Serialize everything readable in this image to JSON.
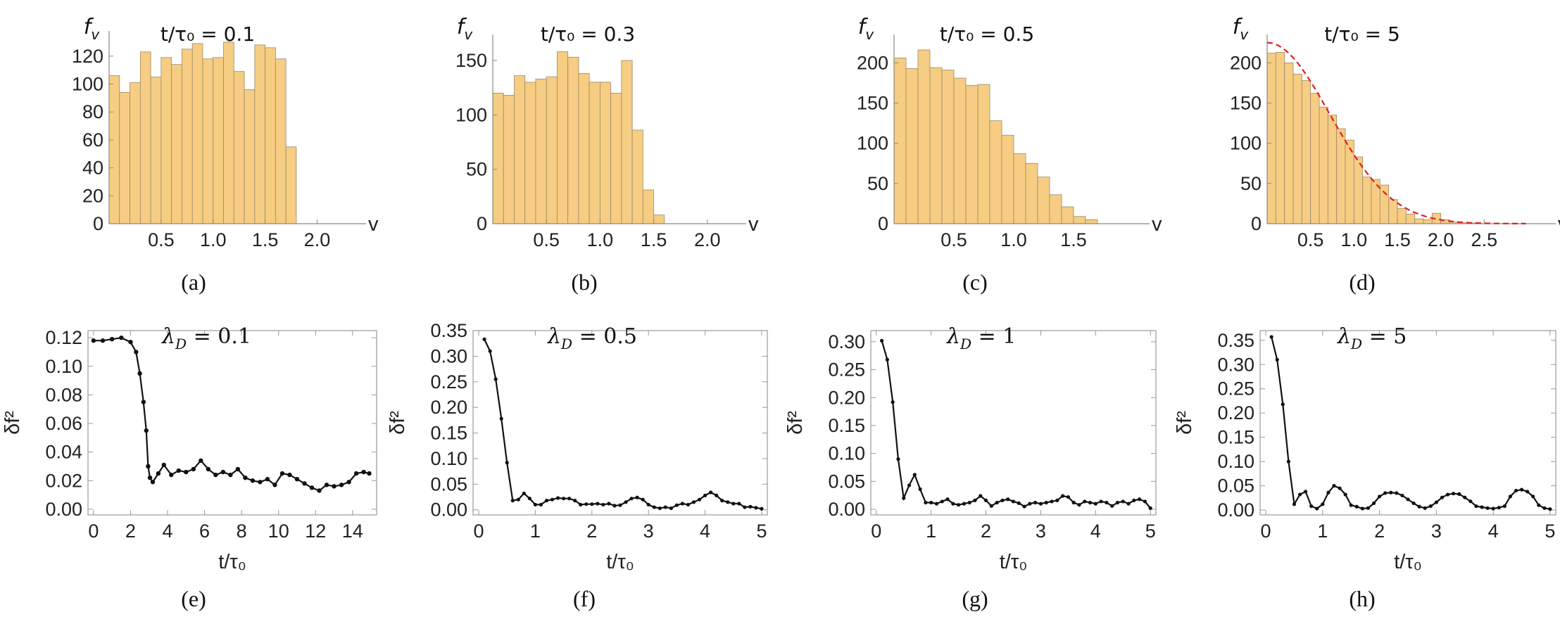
{
  "figure": {
    "chart_data": [
      {
        "type": "bar",
        "panel": "(a)",
        "title": "t/τ₀ = 0.1",
        "ylabel": "f_v",
        "xlabel": "v",
        "bin_start": 0.0,
        "bin_width": 0.1,
        "values": [
          106,
          94,
          101,
          123,
          105,
          119,
          114,
          125,
          129,
          118,
          119,
          130,
          109,
          96,
          128,
          126,
          118,
          55
        ],
        "xlim": [
          0,
          2.2
        ],
        "ylim": [
          0,
          135
        ],
        "xticks": [
          "0.5",
          "1.0",
          "1.5",
          "2.0"
        ],
        "yticks": [
          "0",
          "20",
          "40",
          "60",
          "80",
          "100",
          "120"
        ],
        "color": "#F6CD82"
      },
      {
        "type": "bar",
        "panel": "(b)",
        "title": "t/τ₀ = 0.3",
        "ylabel": "f_v",
        "xlabel": "v",
        "bin_start": 0.0,
        "bin_width": 0.1,
        "values": [
          120,
          118,
          136,
          130,
          133,
          135,
          158,
          153,
          138,
          130,
          130,
          120,
          150,
          86,
          31,
          8
        ],
        "xlim": [
          0,
          2.1
        ],
        "ylim": [
          0,
          170
        ],
        "xticks": [
          "0.5",
          "1.0",
          "1.5",
          "2.0"
        ],
        "yticks": [
          "0",
          "50",
          "100",
          "150"
        ],
        "color": "#F6CD82"
      },
      {
        "type": "bar",
        "panel": "(c)",
        "title": "t/τ₀ = 0.5",
        "ylabel": "f_v",
        "xlabel": "v",
        "bin_start": 0.0,
        "bin_width": 0.1,
        "values": [
          206,
          193,
          216,
          194,
          191,
          181,
          172,
          173,
          128,
          110,
          87,
          75,
          58,
          36,
          21,
          9,
          5
        ],
        "xlim": [
          0,
          1.9
        ],
        "ylim": [
          0,
          230
        ],
        "xticks": [
          "0.5",
          "1.0",
          "1.5"
        ],
        "yticks": [
          "0",
          "50",
          "100",
          "150",
          "200"
        ],
        "color": "#F6CD82"
      },
      {
        "type": "bar",
        "panel": "(d)",
        "title": "t/τ₀ = 5",
        "ylabel": "f_v",
        "xlabel": "v",
        "bin_start": 0.0,
        "bin_width": 0.1,
        "values": [
          212,
          213,
          200,
          186,
          178,
          162,
          145,
          135,
          118,
          104,
          83,
          58,
          55,
          48,
          30,
          19,
          12,
          6,
          5,
          13,
          5,
          2,
          1,
          1,
          0,
          0,
          0,
          0,
          0
        ],
        "fit_curve": {
          "style": "dashed",
          "color": "#E0201B",
          "peak": 225,
          "sigma": 0.72
        },
        "xlim": [
          0,
          3.0
        ],
        "ylim": [
          0,
          230
        ],
        "xticks": [
          "0.5",
          "1.0",
          "1.5",
          "2.0",
          "2.5"
        ],
        "yticks": [
          "0",
          "50",
          "100",
          "150",
          "200"
        ],
        "color": "#F6CD82"
      },
      {
        "type": "line",
        "panel": "(e)",
        "label": "λ_D = 0.1",
        "xlabel": "t/τ₀",
        "ylabel": "δf²",
        "points": [
          [
            0,
            0.118
          ],
          [
            0.5,
            0.118
          ],
          [
            1.0,
            0.119
          ],
          [
            1.5,
            0.12
          ],
          [
            2.0,
            0.117
          ],
          [
            2.3,
            0.11
          ],
          [
            2.5,
            0.095
          ],
          [
            2.7,
            0.075
          ],
          [
            2.85,
            0.055
          ],
          [
            2.95,
            0.03
          ],
          [
            3.05,
            0.022
          ],
          [
            3.2,
            0.019
          ],
          [
            3.5,
            0.025
          ],
          [
            3.8,
            0.031
          ],
          [
            4.2,
            0.024
          ],
          [
            4.6,
            0.027
          ],
          [
            5.0,
            0.026
          ],
          [
            5.4,
            0.028
          ],
          [
            5.8,
            0.034
          ],
          [
            6.2,
            0.028
          ],
          [
            6.6,
            0.024
          ],
          [
            7.0,
            0.026
          ],
          [
            7.4,
            0.024
          ],
          [
            7.8,
            0.028
          ],
          [
            8.2,
            0.022
          ],
          [
            8.6,
            0.02
          ],
          [
            9.0,
            0.019
          ],
          [
            9.4,
            0.021
          ],
          [
            9.8,
            0.017
          ],
          [
            10.2,
            0.025
          ],
          [
            10.6,
            0.024
          ],
          [
            11.0,
            0.021
          ],
          [
            11.4,
            0.018
          ],
          [
            11.8,
            0.015
          ],
          [
            12.2,
            0.013
          ],
          [
            12.6,
            0.017
          ],
          [
            13.0,
            0.016
          ],
          [
            13.4,
            0.017
          ],
          [
            13.8,
            0.019
          ],
          [
            14.2,
            0.025
          ],
          [
            14.6,
            0.026
          ],
          [
            14.9,
            0.025
          ]
        ],
        "xlim": [
          -0.3,
          15.3
        ],
        "ylim": [
          -0.004,
          0.125
        ],
        "xticks": [
          "0",
          "2",
          "4",
          "6",
          "8",
          "10",
          "12",
          "14"
        ],
        "yticks": [
          "0.00",
          "0.02",
          "0.04",
          "0.06",
          "0.08",
          "0.10",
          "0.12"
        ]
      },
      {
        "type": "line",
        "panel": "(f)",
        "label": "λ_D = 0.5",
        "xlabel": "t/τ₀",
        "ylabel": "δf²",
        "points": [
          [
            0.1,
            0.333
          ],
          [
            0.2,
            0.31
          ],
          [
            0.3,
            0.255
          ],
          [
            0.4,
            0.178
          ],
          [
            0.5,
            0.092
          ],
          [
            0.6,
            0.018
          ],
          [
            0.7,
            0.02
          ],
          [
            0.8,
            0.032
          ],
          [
            0.9,
            0.022
          ],
          [
            1.0,
            0.01
          ],
          [
            1.1,
            0.01
          ],
          [
            1.2,
            0.018
          ],
          [
            1.3,
            0.02
          ],
          [
            1.4,
            0.023
          ],
          [
            1.5,
            0.022
          ],
          [
            1.6,
            0.022
          ],
          [
            1.7,
            0.018
          ],
          [
            1.8,
            0.01
          ],
          [
            1.9,
            0.011
          ],
          [
            2.0,
            0.011
          ],
          [
            2.1,
            0.012
          ],
          [
            2.2,
            0.01
          ],
          [
            2.3,
            0.012
          ],
          [
            2.4,
            0.008
          ],
          [
            2.5,
            0.009
          ],
          [
            2.6,
            0.015
          ],
          [
            2.7,
            0.022
          ],
          [
            2.8,
            0.024
          ],
          [
            2.9,
            0.02
          ],
          [
            3.0,
            0.01
          ],
          [
            3.1,
            0.005
          ],
          [
            3.2,
            0.003
          ],
          [
            3.3,
            0.005
          ],
          [
            3.4,
            0.003
          ],
          [
            3.5,
            0.009
          ],
          [
            3.6,
            0.012
          ],
          [
            3.7,
            0.01
          ],
          [
            3.8,
            0.015
          ],
          [
            3.9,
            0.02
          ],
          [
            4.0,
            0.028
          ],
          [
            4.1,
            0.034
          ],
          [
            4.2,
            0.028
          ],
          [
            4.3,
            0.018
          ],
          [
            4.4,
            0.015
          ],
          [
            4.5,
            0.012
          ],
          [
            4.6,
            0.012
          ],
          [
            4.7,
            0.005
          ],
          [
            4.8,
            0.006
          ],
          [
            4.9,
            0.004
          ],
          [
            5.0,
            0.002
          ]
        ],
        "xlim": [
          -0.1,
          5.1
        ],
        "ylim": [
          -0.01,
          0.35
        ],
        "xticks": [
          "0",
          "1",
          "2",
          "3",
          "4",
          "5"
        ],
        "yticks": [
          "0.00",
          "0.05",
          "0.10",
          "0.15",
          "0.20",
          "0.25",
          "0.30",
          "0.35"
        ]
      },
      {
        "type": "line",
        "panel": "(g)",
        "label": "λ_D = 1",
        "xlabel": "t/τ₀",
        "ylabel": "δf²",
        "points": [
          [
            0.1,
            0.302
          ],
          [
            0.2,
            0.268
          ],
          [
            0.3,
            0.192
          ],
          [
            0.4,
            0.09
          ],
          [
            0.5,
            0.02
          ],
          [
            0.6,
            0.043
          ],
          [
            0.7,
            0.062
          ],
          [
            0.8,
            0.036
          ],
          [
            0.9,
            0.012
          ],
          [
            1.0,
            0.012
          ],
          [
            1.1,
            0.01
          ],
          [
            1.2,
            0.014
          ],
          [
            1.3,
            0.018
          ],
          [
            1.4,
            0.01
          ],
          [
            1.5,
            0.008
          ],
          [
            1.6,
            0.01
          ],
          [
            1.7,
            0.012
          ],
          [
            1.8,
            0.016
          ],
          [
            1.9,
            0.024
          ],
          [
            2.0,
            0.016
          ],
          [
            2.1,
            0.006
          ],
          [
            2.2,
            0.012
          ],
          [
            2.3,
            0.016
          ],
          [
            2.4,
            0.018
          ],
          [
            2.5,
            0.014
          ],
          [
            2.6,
            0.011
          ],
          [
            2.7,
            0.005
          ],
          [
            2.8,
            0.01
          ],
          [
            2.9,
            0.012
          ],
          [
            3.0,
            0.01
          ],
          [
            3.1,
            0.012
          ],
          [
            3.2,
            0.014
          ],
          [
            3.3,
            0.016
          ],
          [
            3.4,
            0.024
          ],
          [
            3.5,
            0.022
          ],
          [
            3.6,
            0.012
          ],
          [
            3.7,
            0.008
          ],
          [
            3.8,
            0.014
          ],
          [
            3.9,
            0.012
          ],
          [
            4.0,
            0.01
          ],
          [
            4.1,
            0.014
          ],
          [
            4.2,
            0.012
          ],
          [
            4.3,
            0.006
          ],
          [
            4.4,
            0.012
          ],
          [
            4.5,
            0.014
          ],
          [
            4.6,
            0.01
          ],
          [
            4.7,
            0.016
          ],
          [
            4.8,
            0.018
          ],
          [
            4.9,
            0.014
          ],
          [
            5.0,
            0.002
          ]
        ],
        "xlim": [
          -0.1,
          5.1
        ],
        "ylim": [
          -0.01,
          0.32
        ],
        "xticks": [
          "0",
          "1",
          "2",
          "3",
          "4",
          "5"
        ],
        "yticks": [
          "0.00",
          "0.05",
          "0.10",
          "0.15",
          "0.20",
          "0.25",
          "0.30"
        ]
      },
      {
        "type": "line",
        "panel": "(h)",
        "label": "λ_D = 5",
        "xlabel": "t/τ₀",
        "ylabel": "δf²",
        "points": [
          [
            0.1,
            0.357
          ],
          [
            0.2,
            0.31
          ],
          [
            0.3,
            0.218
          ],
          [
            0.4,
            0.1
          ],
          [
            0.5,
            0.012
          ],
          [
            0.6,
            0.032
          ],
          [
            0.7,
            0.038
          ],
          [
            0.8,
            0.008
          ],
          [
            0.9,
            0.003
          ],
          [
            1.0,
            0.012
          ],
          [
            1.1,
            0.036
          ],
          [
            1.2,
            0.05
          ],
          [
            1.3,
            0.045
          ],
          [
            1.4,
            0.032
          ],
          [
            1.5,
            0.01
          ],
          [
            1.6,
            0.007
          ],
          [
            1.7,
            0.003
          ],
          [
            1.8,
            0.004
          ],
          [
            1.9,
            0.014
          ],
          [
            2.0,
            0.028
          ],
          [
            2.1,
            0.035
          ],
          [
            2.2,
            0.036
          ],
          [
            2.3,
            0.035
          ],
          [
            2.4,
            0.03
          ],
          [
            2.5,
            0.022
          ],
          [
            2.6,
            0.014
          ],
          [
            2.7,
            0.007
          ],
          [
            2.8,
            0.004
          ],
          [
            2.9,
            0.008
          ],
          [
            3.0,
            0.016
          ],
          [
            3.1,
            0.026
          ],
          [
            3.2,
            0.032
          ],
          [
            3.3,
            0.034
          ],
          [
            3.4,
            0.033
          ],
          [
            3.5,
            0.026
          ],
          [
            3.6,
            0.018
          ],
          [
            3.7,
            0.008
          ],
          [
            3.8,
            0.006
          ],
          [
            3.9,
            0.004
          ],
          [
            4.0,
            0.003
          ],
          [
            4.1,
            0.005
          ],
          [
            4.2,
            0.008
          ],
          [
            4.3,
            0.028
          ],
          [
            4.4,
            0.04
          ],
          [
            4.5,
            0.042
          ],
          [
            4.6,
            0.038
          ],
          [
            4.7,
            0.028
          ],
          [
            4.8,
            0.01
          ],
          [
            4.9,
            0.004
          ],
          [
            5.0,
            0.002
          ]
        ],
        "xlim": [
          -0.1,
          5.1
        ],
        "ylim": [
          -0.01,
          0.37
        ],
        "xticks": [
          "0",
          "1",
          "2",
          "3",
          "4",
          "5"
        ],
        "yticks": [
          "0.00",
          "0.05",
          "0.10",
          "0.15",
          "0.20",
          "0.25",
          "0.30",
          "0.35"
        ]
      }
    ]
  }
}
